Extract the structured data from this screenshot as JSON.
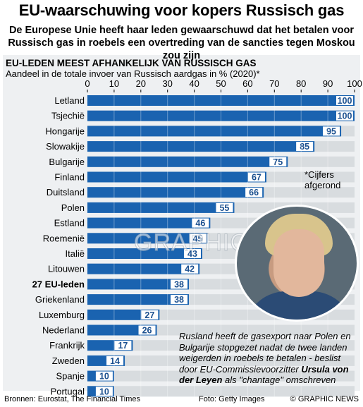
{
  "title": "EU-waarschuwing voor kopers Russisch gas",
  "subtitle_line1": "De Europese Unie heeft haar leden gewaarschuwd dat het betalen voor",
  "subtitle_line2": "Russisch gas in roebels een overtreding van de sancties tegen Moskou zou zijn",
  "section_heading": "EU-LEDEN MEEST AFHANKELIJK VAN RUSSISCH GAS",
  "axis_caption": "Aandeel in de totale invoer van Russisch aardgas in % (2020)*",
  "note": "*Cijfers afgerond",
  "caption": {
    "text": "Rusland heeft de gasexport naar Polen en Bulgarije stopgezet nadat de twee landen weigerden in roebels te betalen - beslist door EU-Commissievoorzitter ",
    "name": "Ursula von der Leyen",
    "tail": " als \"chantage\" omschreven"
  },
  "footer": {
    "sources": "Bronnen: Eurostat, The Financial Times",
    "photo": "Foto: Getty Images",
    "credit": "© GRAPHIC NEWS"
  },
  "watermark": "GRAPHIC NEWS",
  "colors": {
    "bar": "#1a63b0",
    "track": "#d8dcdf",
    "panel": "#eef0f2"
  },
  "chart_data": {
    "type": "bar",
    "orientation": "horizontal",
    "xlim": [
      0,
      100
    ],
    "ticks": [
      0,
      10,
      20,
      30,
      40,
      50,
      60,
      70,
      80,
      90,
      100
    ],
    "categories": [
      "Letland",
      "Tsjechië",
      "Hongarije",
      "Slowakije",
      "Bulgarije",
      "Finland",
      "Duitsland",
      "Polen",
      "Estland",
      "Roemenië",
      "Italië",
      "Litouwen",
      "27 EU-leden",
      "Griekenland",
      "Luxemburg",
      "Nederland",
      "Frankrijk",
      "Zweden",
      "Spanje",
      "Portugal"
    ],
    "values": [
      100,
      100,
      95,
      85,
      75,
      67,
      66,
      55,
      46,
      45,
      43,
      42,
      38,
      38,
      27,
      26,
      17,
      14,
      10,
      10
    ],
    "bold_category": "27 EU-leden"
  }
}
